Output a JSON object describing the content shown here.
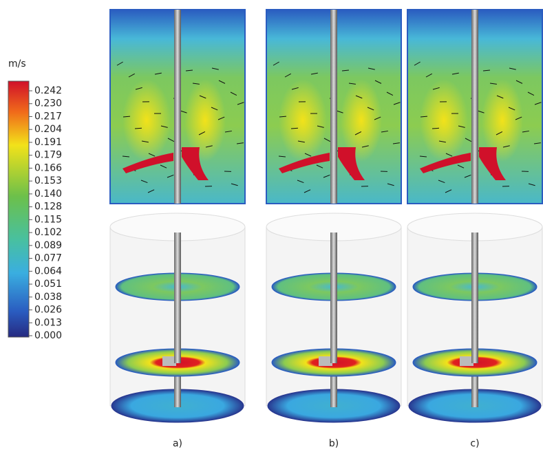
{
  "colorbar": {
    "unit": "m/s",
    "ticks": [
      "0.242",
      "0.230",
      "0.217",
      "0.204",
      "0.191",
      "0.179",
      "0.166",
      "0.153",
      "0.140",
      "0.128",
      "0.115",
      "0.102",
      "0.089",
      "0.077",
      "0.064",
      "0.051",
      "0.038",
      "0.026",
      "0.013",
      "0.000"
    ]
  },
  "panels": [
    {
      "label": "a)"
    },
    {
      "label": "b)"
    },
    {
      "label": "c)"
    }
  ]
}
